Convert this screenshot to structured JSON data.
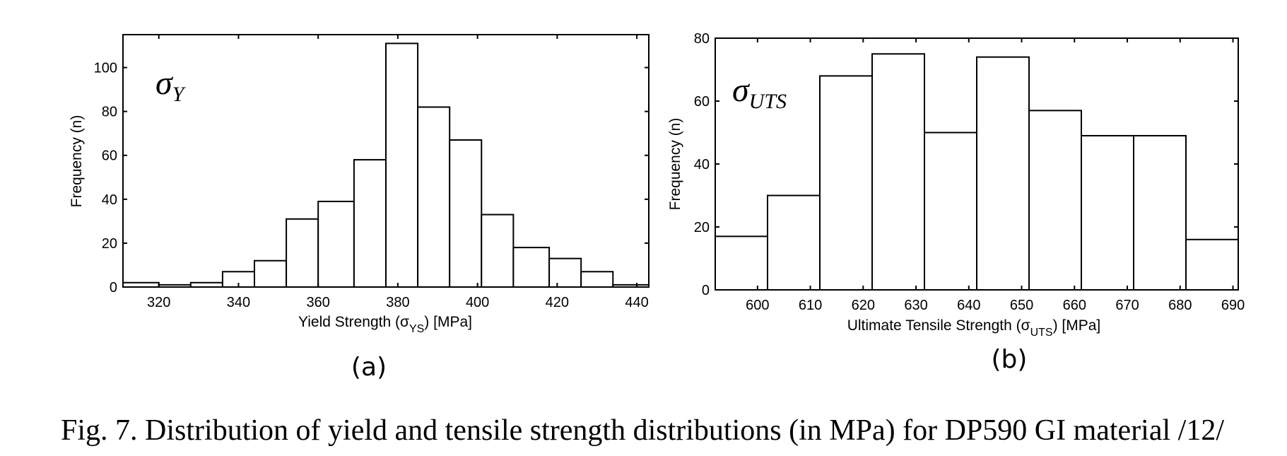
{
  "caption": "Fig. 7. Distribution of yield and tensile strength distributions (in MPa) for DP590 GI material /12/",
  "chart_data": [
    {
      "type": "bar",
      "panel_label": "(a)",
      "annotation": {
        "symbol": "σ",
        "subscript": "Y"
      },
      "xlabel": {
        "prefix": "Yield Strength (σ",
        "sub": "YS",
        "suffix": ") [MPa]"
      },
      "ylabel": "Frequency (n)",
      "xlim": [
        311,
        443
      ],
      "ylim": [
        0,
        115
      ],
      "xticks": [
        320,
        340,
        360,
        380,
        400,
        420,
        440
      ],
      "yticks": [
        0,
        20,
        40,
        60,
        80,
        100
      ],
      "bin_edges": [
        311,
        320,
        328,
        336,
        344,
        352,
        360,
        369,
        377,
        385,
        393,
        401,
        409,
        418,
        426,
        434,
        443
      ],
      "values": [
        2,
        1,
        2,
        7,
        12,
        31,
        39,
        58,
        111,
        82,
        67,
        33,
        18,
        13,
        7,
        1
      ]
    },
    {
      "type": "bar",
      "panel_label": "(b)",
      "annotation": {
        "symbol": "σ",
        "subscript": "UTS"
      },
      "xlabel": {
        "prefix": "Ultimate Tensile Strength (σ",
        "sub": "UTS",
        "suffix": ") [MPa]"
      },
      "ylabel": "Frequency (n)",
      "xlim": [
        592,
        691
      ],
      "ylim": [
        0,
        80
      ],
      "xticks": [
        600,
        610,
        620,
        630,
        640,
        650,
        660,
        670,
        680,
        690
      ],
      "yticks": [
        0,
        20,
        40,
        60,
        80
      ],
      "bin_edges": [
        592,
        601.9,
        611.8,
        621.7,
        631.6,
        641.5,
        651.4,
        661.3,
        671.2,
        681.1,
        691
      ],
      "values": [
        17,
        30,
        68,
        75,
        50,
        74,
        57,
        49,
        49,
        16
      ]
    }
  ]
}
